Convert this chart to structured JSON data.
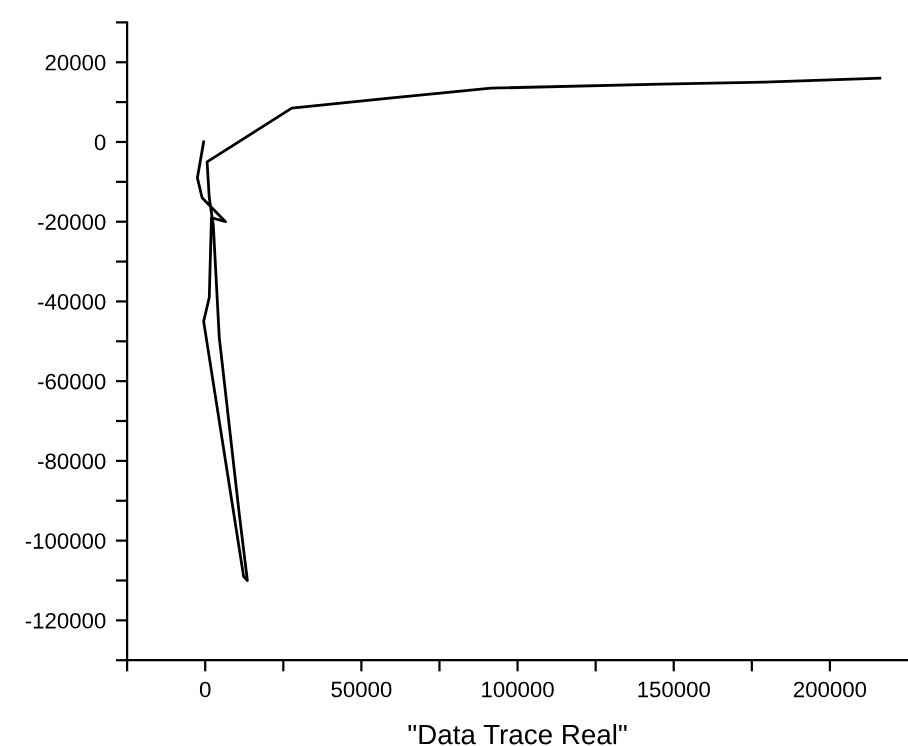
{
  "chart_data": {
    "type": "line",
    "xlabel": "\"Data Trace Real\"",
    "series": [
      {
        "color": "#000000",
        "x": [
          -500,
          -2500,
          -1000,
          6500,
          2000,
          1300,
          -500,
          12300,
          13500,
          11000,
          4500,
          2600,
          1300,
          600,
          27700,
          59000,
          91500,
          146000,
          179000,
          216000
        ],
        "values": [
          0,
          -9000,
          -14000,
          -20000,
          -19000,
          -39000,
          -45000,
          -109000,
          -110000,
          -94000,
          -49000,
          -21000,
          -14000,
          -5000,
          8500,
          11000,
          13500,
          14500,
          15000,
          16000
        ]
      }
    ],
    "xlim": [
      -25000,
      225000
    ],
    "xticks": [
      {
        "value": -25000,
        "label": null
      },
      0,
      {
        "value": 25000,
        "label": null
      },
      50000,
      {
        "value": 75000,
        "label": null
      },
      100000,
      {
        "value": 125000,
        "label": null
      },
      150000,
      {
        "value": 175000,
        "label": null
      },
      200000
    ],
    "ylim": [
      -130000,
      30000
    ],
    "yticks": [
      {
        "value": -130000,
        "label": null
      },
      -120000,
      {
        "value": -110000,
        "label": null
      },
      -100000,
      {
        "value": -90000,
        "label": null
      },
      -80000,
      {
        "value": -70000,
        "label": null
      },
      -60000,
      {
        "value": -50000,
        "label": null
      },
      -40000,
      {
        "value": -30000,
        "label": null
      },
      -20000,
      {
        "value": -10000,
        "label": null
      },
      0,
      {
        "value": 10000,
        "label": null
      },
      20000,
      {
        "value": 30000,
        "label": null
      }
    ],
    "grid": false,
    "legend": false,
    "marker": "none",
    "line_style": "solid"
  }
}
